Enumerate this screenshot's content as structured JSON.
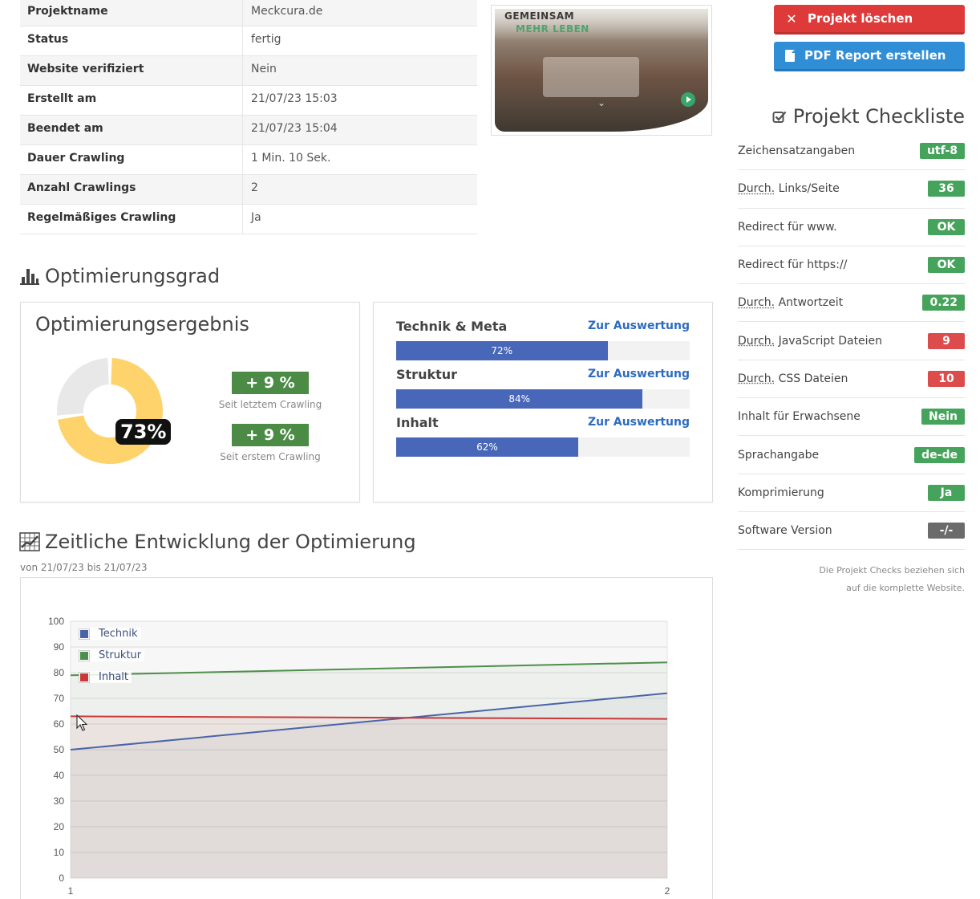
{
  "project_info": [
    {
      "key": "Projektname",
      "value": "Meckcura.de"
    },
    {
      "key": "Status",
      "value": "fertig"
    },
    {
      "key": "Website verifiziert",
      "value": "Nein"
    },
    {
      "key": "Erstellt am",
      "value": "21/07/23 15:03"
    },
    {
      "key": "Beendet am",
      "value": "21/07/23 15:04"
    },
    {
      "key": "Dauer Crawling",
      "value": "1 Min. 10 Sek."
    },
    {
      "key": "Anzahl Crawlings",
      "value": "2"
    },
    {
      "key": "Regelmäßiges Crawling",
      "value": "Ja"
    }
  ],
  "thumbnail": {
    "line1": "GEMEINSAM",
    "line2": "MEHR LEBEN"
  },
  "buttons": {
    "delete": "Projekt löschen",
    "pdf": "PDF Report erstellen"
  },
  "checklist": {
    "title": "Projekt Checkliste",
    "items": [
      {
        "prefix": "",
        "label": "Zeichensatzangaben",
        "value": "utf-8",
        "color": "#46a35b"
      },
      {
        "prefix": "Durch.",
        "label": " Links/Seite",
        "value": "36",
        "color": "#46a35b"
      },
      {
        "prefix": "",
        "label": "Redirect für www.",
        "value": "OK",
        "color": "#46a35b"
      },
      {
        "prefix": "",
        "label": "Redirect für https://",
        "value": "OK",
        "color": "#46a35b"
      },
      {
        "prefix": "Durch.",
        "label": " Antwortzeit",
        "value": "0.22",
        "color": "#46a35b"
      },
      {
        "prefix": "Durch.",
        "label": " JavaScript Dateien",
        "value": "9",
        "color": "#dc4c4c"
      },
      {
        "prefix": "Durch.",
        "label": " CSS Dateien",
        "value": "10",
        "color": "#dc4c4c"
      },
      {
        "prefix": "",
        "label": "Inhalt für Erwachsene",
        "value": "Nein",
        "color": "#46a35b"
      },
      {
        "prefix": "",
        "label": "Sprachangabe",
        "value": "de-de",
        "color": "#46a35b"
      },
      {
        "prefix": "",
        "label": "Komprimierung",
        "value": "Ja",
        "color": "#46a35b"
      },
      {
        "prefix": "",
        "label": "Software Version",
        "value": "-/-",
        "color": "#6b6b6b"
      }
    ],
    "note_line1": "Die Projekt Checks beziehen sich",
    "note_line2": "auf die komplette Website."
  },
  "optimization": {
    "section_title": "Optimierungsgrad",
    "result_title": "Optimierungsergebnis",
    "overall_percent": 73,
    "overall_label": "73%",
    "delta_last": "+ 9 %",
    "delta_last_caption": "Seit letztem Crawling",
    "delta_first": "+ 9 %",
    "delta_first_caption": "Seit erstem Crawling",
    "categories": [
      {
        "name": "Technik & Meta",
        "percent": 72,
        "label": "72%",
        "link": "Zur Auswertung"
      },
      {
        "name": "Struktur",
        "percent": 84,
        "label": "84%",
        "link": "Zur Auswertung"
      },
      {
        "name": "Inhalt",
        "percent": 62,
        "label": "62%",
        "link": "Zur Auswertung"
      }
    ]
  },
  "timeline": {
    "section_title": "Zeitliche Entwicklung der Optimierung",
    "subtitle": "von 21/07/23 bis 21/07/23"
  },
  "chart_data": {
    "type": "line",
    "x": [
      1,
      2
    ],
    "xticks": [
      "1",
      "2"
    ],
    "ylim": [
      0,
      100
    ],
    "yticks": [
      "0",
      "10",
      "20",
      "30",
      "40",
      "50",
      "60",
      "70",
      "80",
      "90",
      "100"
    ],
    "grid": true,
    "legend": "top-left",
    "series": [
      {
        "name": "Technik",
        "values": [
          50,
          72
        ],
        "color": "#4a64a8"
      },
      {
        "name": "Struktur",
        "values": [
          79,
          84
        ],
        "color": "#4e8f4a"
      },
      {
        "name": "Inhalt",
        "values": [
          63,
          62
        ],
        "color": "#c8393a"
      }
    ]
  }
}
